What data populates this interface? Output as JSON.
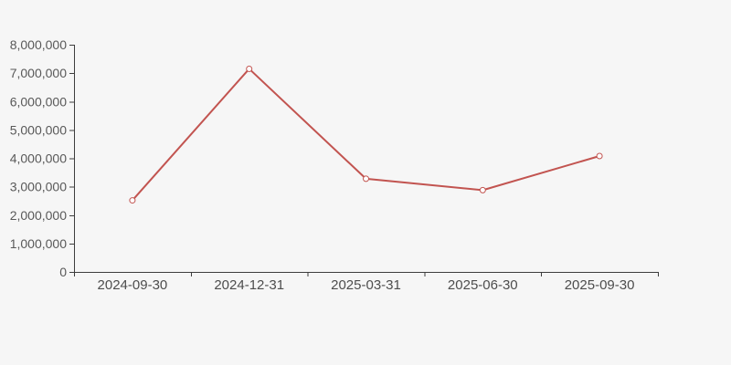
{
  "chart_data": {
    "type": "line",
    "categories": [
      "2024-09-30",
      "2024-12-31",
      "2025-03-31",
      "2025-06-30",
      "2025-09-30"
    ],
    "series": [
      {
        "name": "value",
        "values": [
          2520000,
          7150000,
          3280000,
          2880000,
          4080000
        ]
      }
    ],
    "title": "",
    "xlabel": "",
    "ylabel": "",
    "ylim": [
      0,
      8000000
    ],
    "ytick_interval": 1000000,
    "ytick_labels": [
      "0",
      "1,000,000",
      "2,000,000",
      "3,000,000",
      "4,000,000",
      "5,000,000",
      "6,000,000",
      "7,000,000",
      "8,000,000"
    ],
    "grid": false,
    "legend": false,
    "boundary_gap": true,
    "marker": "open-circle"
  },
  "colors": {
    "line": "#c25450",
    "marker_fill": "#ffffff",
    "axis": "#3d3d3d",
    "y_label": "#595959",
    "x_label": "#4d4d4d",
    "background": "#f6f6f6"
  }
}
